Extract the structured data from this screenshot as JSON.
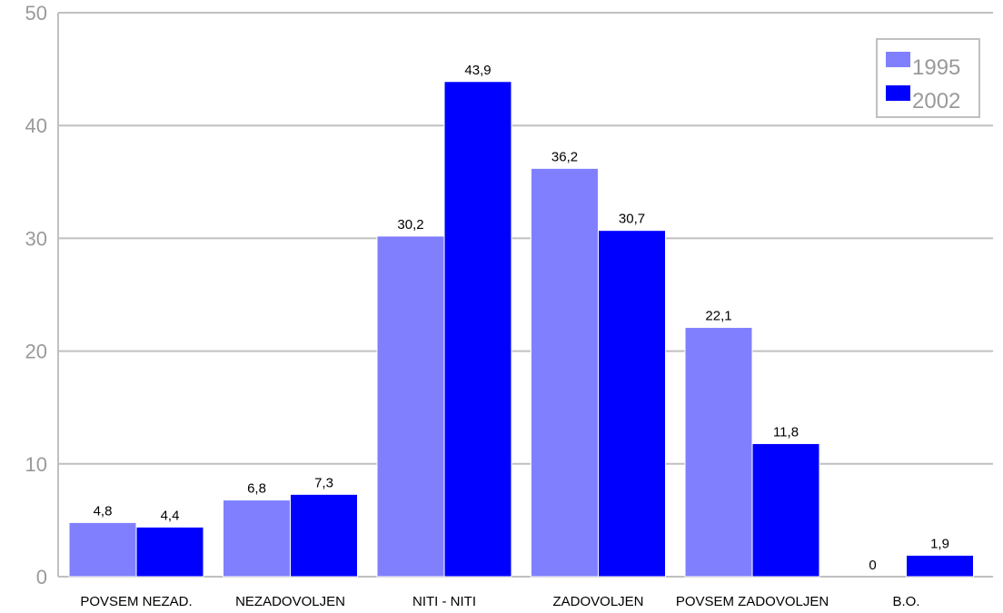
{
  "chart_data": {
    "type": "bar",
    "categories": [
      "POVSEM NEZAD.",
      "NEZADOVOLJEN",
      "NITI - NITI",
      "ZADOVOLJEN",
      "POVSEM ZADOVOLJEN",
      "B.O."
    ],
    "series": [
      {
        "name": "1995",
        "values": [
          4.8,
          6.8,
          30.2,
          36.2,
          22.1,
          0
        ],
        "labels": [
          "4,8",
          "6,8",
          "30,2",
          "36,2",
          "22,1",
          "0"
        ],
        "color": "#8080ff"
      },
      {
        "name": "2002",
        "values": [
          4.4,
          7.3,
          43.9,
          30.7,
          11.8,
          1.9
        ],
        "labels": [
          "4,4",
          "7,3",
          "43,9",
          "30,7",
          "11,8",
          "1,9"
        ],
        "color": "#0000ff"
      }
    ],
    "ylim": [
      0,
      50
    ],
    "yticks": [
      0,
      10,
      20,
      30,
      40,
      50
    ],
    "ytick_labels": [
      "0",
      "10",
      "20",
      "30",
      "40",
      "50"
    ],
    "grid": true,
    "legend_position": "top-right",
    "title": "",
    "xlabel": "",
    "ylabel": ""
  }
}
